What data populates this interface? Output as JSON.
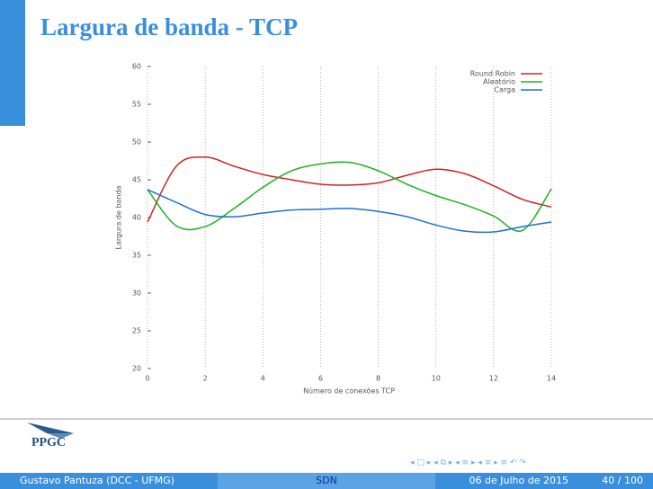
{
  "slide": {
    "title": "Largura de banda - TCP"
  },
  "chart_data": {
    "type": "line",
    "x_label": "Número de conexões TCP",
    "y_label": "Largura de banda",
    "x": [
      0,
      1,
      2,
      3,
      4,
      5,
      6,
      7,
      8,
      9,
      10,
      11,
      12,
      13,
      14
    ],
    "series": [
      {
        "name": "Round Robin",
        "color": "#d42020",
        "values": [
          39.4,
          46.8,
          48.0,
          46.8,
          45.7,
          45.0,
          44.4,
          44.3,
          44.6,
          45.6,
          46.4,
          45.8,
          44.2,
          42.4,
          41.4
        ]
      },
      {
        "name": "Aleatório",
        "color": "#20b020",
        "values": [
          43.7,
          38.9,
          38.8,
          41.2,
          44.0,
          46.2,
          47.1,
          47.3,
          46.2,
          44.4,
          42.9,
          41.7,
          40.2,
          38.3,
          43.8
        ]
      },
      {
        "name": "Carga",
        "color": "#2070d0",
        "values": [
          43.7,
          42.0,
          40.4,
          40.1,
          40.6,
          41.0,
          41.1,
          41.2,
          40.8,
          40.1,
          39.0,
          38.2,
          38.1,
          38.8,
          39.4
        ]
      }
    ],
    "xlim": [
      0,
      14
    ],
    "xticks": [
      0,
      2,
      4,
      6,
      8,
      10,
      12,
      14
    ],
    "ylim": [
      20,
      60
    ],
    "yticks": [
      20,
      25,
      30,
      35,
      40,
      45,
      50,
      55,
      60
    ],
    "grid": "x",
    "legend": "top-right"
  },
  "logo": "PPGC",
  "footer": {
    "author": "Gustavo Pantuza (DCC - UFMG)",
    "section": "SDN",
    "date": "06 de Julho de 2015",
    "page": "40 / 100"
  }
}
